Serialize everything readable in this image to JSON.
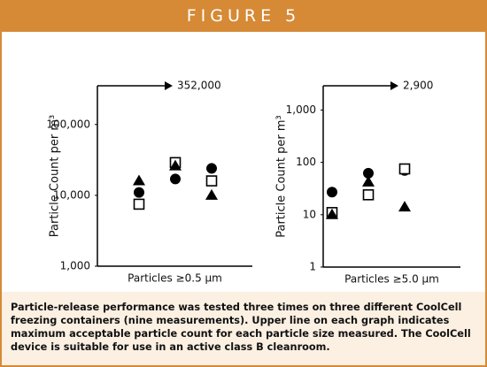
{
  "header": {
    "title": "FIGURE 5"
  },
  "chart_data": [
    {
      "type": "scatter",
      "ylabel": "Particle Count per m³",
      "xlabel": "Particles ≥0.5 µm",
      "log_y": true,
      "ylim": [
        1000,
        352000
      ],
      "yticks": [
        {
          "value": 1000,
          "label": "1,000"
        },
        {
          "value": 10000,
          "label": "10,000"
        },
        {
          "value": 100000,
          "label": "100,000"
        }
      ],
      "limit": {
        "value": 352000,
        "label": "352,000"
      },
      "categories": [
        null,
        null,
        null
      ],
      "series": [
        {
          "marker": "circle",
          "color": "#000000",
          "values": [
            11000,
            17000,
            24000
          ]
        },
        {
          "marker": "square",
          "color": "#000000",
          "values": [
            7500,
            29000,
            16000
          ]
        },
        {
          "marker": "triangle",
          "color": "#000000",
          "values": [
            16000,
            26000,
            10000
          ]
        }
      ]
    },
    {
      "type": "scatter",
      "ylabel": "Particle Count per m³",
      "xlabel": "Particles ≥5.0 µm",
      "log_y": true,
      "ylim": [
        1,
        2900
      ],
      "yticks": [
        1,
        10,
        100,
        {
          "value": 1000,
          "label": "1,000"
        }
      ],
      "limit": {
        "value": 2900,
        "label": "2,900"
      },
      "categories": [
        null,
        null,
        null
      ],
      "series": [
        {
          "marker": "circle",
          "color": "#000000",
          "values": [
            27,
            62,
            70
          ]
        },
        {
          "marker": "square",
          "color": "#000000",
          "values": [
            11,
            24,
            75
          ]
        },
        {
          "marker": "triangle",
          "color": "#000000",
          "values": [
            10,
            42,
            14
          ]
        }
      ]
    }
  ],
  "caption": "Particle-release performance was tested three times on three different CoolCell freezing containers (nine measurements). Upper line on each graph indicates maximum acceptable particle count for each particle size measured. The CoolCell device is suitable for use in an active class B cleanroom."
}
